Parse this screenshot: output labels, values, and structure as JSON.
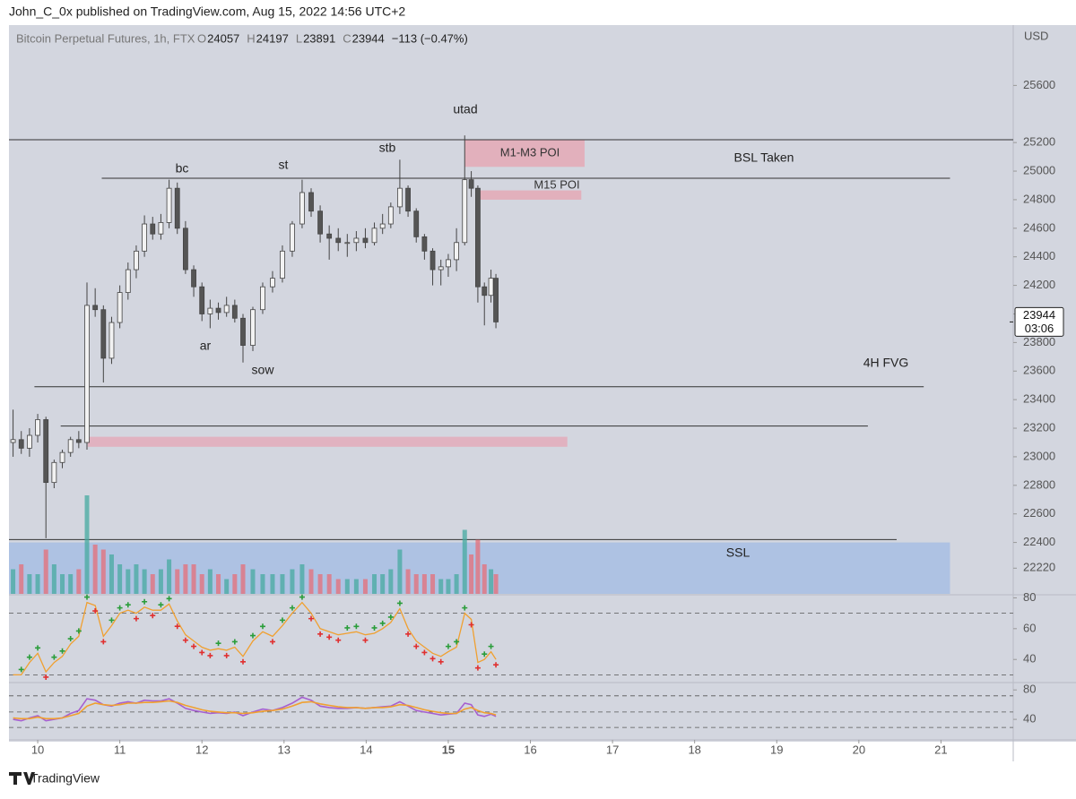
{
  "header": {
    "author_line": "John_C_0x published on TradingView.com, Aug 15, 2022 14:56 UTC+2",
    "footer": "TradingView"
  },
  "chart_data": {
    "type": "candlestick",
    "symbol": "Bitcoin Perpetual Futures, 1h, FTX",
    "ohlc_legend": [
      {
        "label": "O",
        "value": 24057
      },
      {
        "label": "H",
        "value": 24197
      },
      {
        "label": "L",
        "value": 23891
      },
      {
        "label": "C",
        "value": 23944
      }
    ],
    "change": "−113 (−0.47%)",
    "currency": "USD",
    "last_price": 23944,
    "countdown": "03:06",
    "xlim": [
      9.65,
      21.88
    ],
    "xticks": [
      10,
      11,
      12,
      13,
      14,
      {
        "value": 15,
        "label": "15"
      },
      16,
      17,
      18,
      19,
      20,
      21
    ],
    "ylim": [
      22040,
      26010
    ],
    "yticks": [
      25600,
      25200,
      25000,
      24800,
      24600,
      24400,
      24200,
      24000,
      23800,
      23600,
      23400,
      23200,
      23000,
      22800,
      22600,
      22400,
      22220
    ],
    "x": [
      9.7,
      9.8,
      9.9,
      10.0,
      10.1,
      10.2,
      10.3,
      10.4,
      10.5,
      10.6,
      10.7,
      10.8,
      10.9,
      11.0,
      11.1,
      11.2,
      11.3,
      11.4,
      11.5,
      11.6,
      11.7,
      11.8,
      11.9,
      12.0,
      12.1,
      12.2,
      12.3,
      12.4,
      12.5,
      12.62,
      12.74,
      12.86,
      12.98,
      13.1,
      13.22,
      13.33,
      13.44,
      13.55,
      13.66,
      13.77,
      13.88,
      13.99,
      14.1,
      14.2,
      14.3,
      14.41,
      14.51,
      14.61,
      14.71,
      14.81,
      14.91,
      15.0,
      15.1,
      15.2,
      15.28,
      15.36,
      15.44,
      15.52,
      15.58
    ],
    "open": [
      23100,
      23120,
      23060,
      23150,
      23260,
      22820,
      22960,
      23030,
      23120,
      23100,
      24060,
      24030,
      23690,
      23940,
      24150,
      24310,
      24440,
      24630,
      24560,
      24640,
      24880,
      24600,
      24310,
      24190,
      24000,
      24040,
      24010,
      24060,
      23970,
      23780,
      24030,
      24190,
      24250,
      24440,
      24630,
      24850,
      24720,
      24560,
      24530,
      24500,
      24500,
      24530,
      24500,
      24600,
      24630,
      24750,
      24880,
      24720,
      24540,
      24440,
      24310,
      24330,
      24380,
      24500,
      24940,
      24880,
      24190,
      24130,
      24250
    ],
    "high": [
      23330,
      23180,
      23200,
      23300,
      23280,
      22980,
      23050,
      23140,
      23180,
      24220,
      24180,
      24060,
      23980,
      24200,
      24360,
      24480,
      24690,
      24680,
      24700,
      24940,
      24920,
      24650,
      24340,
      24220,
      24100,
      24080,
      24120,
      24100,
      24000,
      24050,
      24220,
      24300,
      24480,
      24650,
      24940,
      24880,
      24760,
      24620,
      24600,
      24560,
      24580,
      24600,
      24640,
      24700,
      24780,
      25080,
      24900,
      24740,
      24560,
      24460,
      24380,
      24420,
      24600,
      25250,
      25000,
      24900,
      24220,
      24310,
      24280
    ],
    "low": [
      23000,
      23020,
      23000,
      23100,
      22430,
      22780,
      22920,
      23000,
      23060,
      23050,
      23980,
      23520,
      23650,
      23900,
      24100,
      24250,
      24400,
      24520,
      24520,
      24600,
      24560,
      24280,
      24120,
      23950,
      23900,
      23960,
      23980,
      23940,
      23660,
      23740,
      24000,
      24150,
      24220,
      24400,
      24600,
      24680,
      24500,
      24380,
      24440,
      24400,
      24440,
      24460,
      24480,
      24560,
      24600,
      24700,
      24680,
      24500,
      24380,
      24200,
      24200,
      24260,
      24300,
      24480,
      24820,
      24080,
      23920,
      24080,
      23900
    ],
    "close": [
      23120,
      23060,
      23150,
      23260,
      22820,
      22960,
      23030,
      23120,
      23100,
      24060,
      24030,
      23690,
      23940,
      24150,
      24310,
      24440,
      24630,
      24560,
      24640,
      24880,
      24600,
      24310,
      24190,
      24000,
      24040,
      24010,
      24060,
      23970,
      23780,
      24030,
      24190,
      24250,
      24440,
      24630,
      24850,
      24720,
      24560,
      24530,
      24500,
      24500,
      24530,
      24500,
      24600,
      24630,
      24750,
      24880,
      24720,
      24540,
      24440,
      24310,
      24330,
      24380,
      24500,
      24940,
      24880,
      24190,
      24130,
      24250,
      23944
    ],
    "volume": [
      25,
      30,
      20,
      20,
      45,
      30,
      20,
      20,
      25,
      100,
      50,
      45,
      40,
      30,
      25,
      30,
      25,
      20,
      25,
      35,
      25,
      30,
      30,
      20,
      25,
      20,
      15,
      20,
      30,
      25,
      20,
      20,
      20,
      25,
      30,
      25,
      20,
      20,
      15,
      15,
      15,
      15,
      20,
      20,
      25,
      45,
      25,
      20,
      20,
      20,
      15,
      15,
      20,
      65,
      40,
      55,
      30,
      25,
      20
    ],
    "lines": [
      {
        "price": 25220,
        "from": 9.65,
        "to": 21.88
      },
      {
        "price": 24950,
        "from": 10.78,
        "to": 21.11
      },
      {
        "price": 23490,
        "from": 9.96,
        "to": 20.79
      },
      {
        "price": 23215,
        "from": 10.28,
        "to": 20.11
      },
      {
        "price": 22420,
        "from": 9.65,
        "to": 20.46
      }
    ],
    "zones": [
      {
        "low": 25030,
        "high": 25220,
        "from": 15.2,
        "to": 16.66,
        "color": "rgba(236,150,165,0.6)"
      },
      {
        "low": 24800,
        "high": 24865,
        "from": 15.33,
        "to": 16.62,
        "color": "rgba(236,150,165,0.6)"
      },
      {
        "low": 23070,
        "high": 23140,
        "from": 10.61,
        "to": 16.45,
        "color": "rgba(236,150,165,0.55)"
      },
      {
        "low": 22040,
        "high": 22400,
        "from": 9.65,
        "to": 21.11,
        "color": "rgba(150,180,230,0.6)"
      }
    ],
    "annotations": [
      "utad",
      "M1-M3 POI",
      "BSL Taken",
      "stb",
      "bc",
      "st",
      "M15 POI",
      "ar",
      "sow",
      "4H FVG",
      "SSL"
    ],
    "rsi": {
      "ylim": [
        25,
        82
      ],
      "yticks": [
        80,
        60,
        40
      ],
      "bands": [
        70,
        30
      ],
      "color": "#f0a030",
      "values": [
        30,
        30,
        38,
        44,
        32,
        38,
        42,
        50,
        55,
        77,
        75,
        55,
        62,
        70,
        72,
        70,
        74,
        72,
        72,
        76,
        65,
        56,
        52,
        48,
        46,
        47,
        46,
        48,
        42,
        52,
        58,
        55,
        62,
        70,
        77,
        70,
        60,
        58,
        56,
        57,
        58,
        56,
        57,
        60,
        64,
        73,
        60,
        52,
        48,
        44,
        42,
        45,
        48,
        70,
        66,
        38,
        40,
        45,
        40
      ]
    },
    "oscillator": {
      "ylim": [
        17,
        90
      ],
      "yticks": [
        80,
        40
      ],
      "bands": [
        72,
        50,
        29
      ],
      "series": [
        {
          "color": "#a65fd0",
          "values": [
            40,
            38,
            42,
            45,
            38,
            40,
            42,
            48,
            52,
            68,
            66,
            60,
            58,
            62,
            64,
            62,
            66,
            65,
            65,
            68,
            62,
            55,
            52,
            50,
            48,
            49,
            48,
            50,
            45,
            50,
            54,
            52,
            56,
            62,
            70,
            66,
            58,
            56,
            55,
            55,
            56,
            55,
            56,
            57,
            58,
            64,
            58,
            52,
            50,
            48,
            46,
            47,
            48,
            62,
            60,
            46,
            44,
            47,
            44
          ]
        },
        {
          "color": "#f0a030",
          "values": [
            42,
            41,
            41,
            43,
            41,
            41,
            42,
            45,
            48,
            58,
            62,
            60,
            59,
            60,
            62,
            62,
            63,
            63,
            64,
            65,
            63,
            59,
            56,
            53,
            51,
            50,
            49,
            49,
            48,
            49,
            51,
            52,
            54,
            58,
            63,
            64,
            61,
            59,
            57,
            56,
            56,
            55,
            56,
            56,
            57,
            60,
            59,
            56,
            53,
            51,
            49,
            48,
            48,
            54,
            56,
            52,
            49,
            48,
            46
          ]
        }
      ]
    }
  }
}
